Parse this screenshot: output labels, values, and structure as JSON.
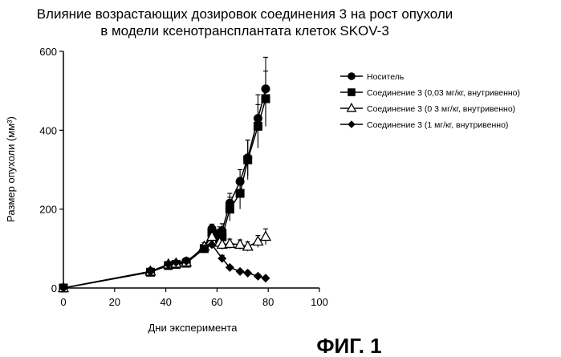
{
  "chart_data": {
    "type": "line",
    "title_line1": "Влияние возрастающих дозировок соединения 3 на рост опухоли",
    "title_line2": "в модели ксенотрансплантата клеток SKOV-3",
    "xlabel": "Дни эксперимента",
    "ylabel": "Размер опухоли (мм³)",
    "xlim": [
      0,
      100
    ],
    "ylim": [
      0,
      600
    ],
    "xticks": [
      0,
      20,
      40,
      60,
      80,
      100
    ],
    "yticks": [
      0,
      200,
      400,
      600
    ],
    "grid": false,
    "legend_position": "right",
    "figure_label": "ФИГ. 1",
    "series": [
      {
        "name": "Носитель",
        "marker": "circle",
        "x": [
          0,
          34,
          41,
          44,
          48,
          55,
          58,
          61,
          62,
          65,
          69,
          72,
          76,
          79
        ],
        "y": [
          0,
          42,
          58,
          60,
          68,
          100,
          150,
          140,
          145,
          215,
          270,
          330,
          430,
          505
        ],
        "err": [
          0,
          5,
          5,
          5,
          8,
          10,
          12,
          15,
          18,
          25,
          30,
          45,
          60,
          80
        ]
      },
      {
        "name": "Соединение 3 (0,03 мг/кг, внутривенно)",
        "marker": "square",
        "x": [
          0,
          34,
          41,
          44,
          48,
          55,
          58,
          61,
          62,
          65,
          69,
          72,
          76,
          79
        ],
        "y": [
          0,
          40,
          57,
          60,
          63,
          100,
          140,
          125,
          130,
          200,
          240,
          325,
          410,
          480
        ],
        "err": [
          0,
          5,
          5,
          5,
          8,
          10,
          12,
          15,
          18,
          30,
          40,
          50,
          55,
          70
        ]
      },
      {
        "name": "Соединение 3 (0 3 мг/кг, внутривенно)",
        "marker": "triangle",
        "x": [
          0,
          34,
          41,
          44,
          48,
          55,
          58,
          61,
          62,
          65,
          69,
          72,
          76,
          79
        ],
        "y": [
          0,
          42,
          60,
          62,
          65,
          105,
          130,
          115,
          110,
          112,
          110,
          105,
          118,
          130
        ],
        "err": [
          0,
          5,
          5,
          5,
          8,
          10,
          12,
          12,
          12,
          12,
          12,
          12,
          15,
          20
        ]
      },
      {
        "name": "Соединение 3 (1 мг/кг, внутривенно)",
        "marker": "diamond",
        "x": [
          0,
          34,
          41,
          44,
          48,
          55,
          58,
          62,
          65,
          69,
          72,
          76,
          79
        ],
        "y": [
          0,
          42,
          60,
          65,
          68,
          100,
          110,
          75,
          52,
          42,
          38,
          30,
          25
        ],
        "err": [
          0,
          5,
          5,
          5,
          8,
          8,
          10,
          8,
          5,
          5,
          5,
          5,
          5
        ]
      }
    ]
  }
}
